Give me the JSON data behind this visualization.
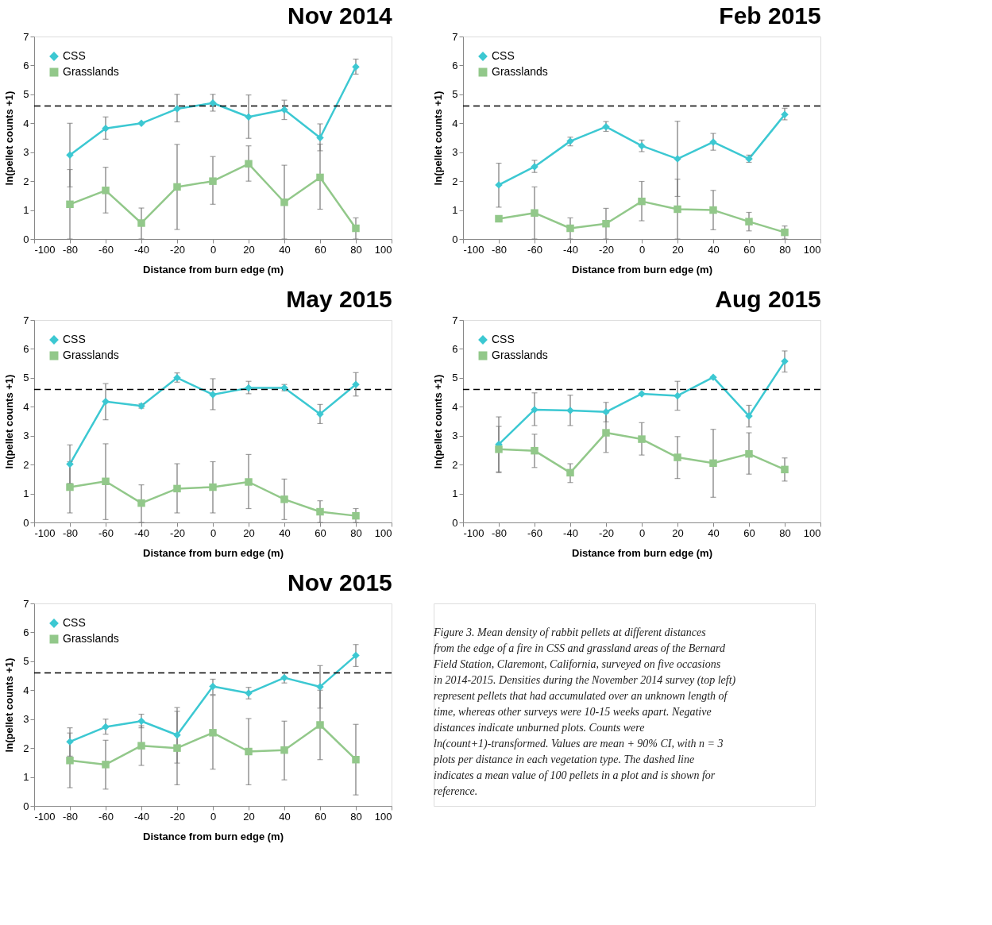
{
  "chart_data": [
    {
      "type": "line",
      "title": "Nov 2014",
      "xlabel": "Distance from burn edge (m)",
      "ylabel": "ln(pellet counts +1)",
      "x": [
        -80,
        -60,
        -40,
        -20,
        0,
        20,
        40,
        60,
        80
      ],
      "xlim": [
        -100,
        100
      ],
      "xticks": [
        -100,
        -80,
        -60,
        -40,
        -20,
        0,
        20,
        40,
        60,
        80,
        100
      ],
      "ylim": [
        0,
        7
      ],
      "yticks": [
        0,
        1,
        2,
        3,
        4,
        5,
        6,
        7
      ],
      "grid": false,
      "legend": "top left",
      "ref_lines": [
        {
          "axis": "y",
          "value": 4.6,
          "line_style": "dashed",
          "color": "#000000"
        }
      ],
      "series": [
        {
          "name": "CSS",
          "color": "#3cc8d2",
          "marker": "diamond",
          "values": [
            2.9,
            3.82,
            4.0,
            4.5,
            4.7,
            4.22,
            4.47,
            3.5,
            5.95
          ],
          "errors": [
            [
              1.8,
              4.0
            ],
            [
              3.45,
              4.22
            ],
            null,
            [
              4.05,
              5.0
            ],
            [
              4.42,
              5.0
            ],
            [
              3.48,
              4.98
            ],
            [
              4.13,
              4.8
            ],
            [
              3.05,
              3.98
            ],
            [
              5.7,
              6.22
            ]
          ]
        },
        {
          "name": "Grasslands",
          "color": "#92c88a",
          "marker": "square",
          "values": [
            1.2,
            1.68,
            0.55,
            1.8,
            2.0,
            2.6,
            1.27,
            2.13,
            0.37
          ],
          "errors": [
            [
              0,
              2.4
            ],
            [
              0.9,
              2.48
            ],
            [
              0,
              1.07
            ],
            [
              0.33,
              3.27
            ],
            [
              1.2,
              2.85
            ],
            [
              2.0,
              3.22
            ],
            [
              0,
              2.55
            ],
            [
              1.03,
              3.28
            ],
            [
              0,
              0.73
            ]
          ]
        }
      ]
    },
    {
      "type": "line",
      "title": "Feb 2015",
      "xlabel": "Distance from burn edge (m)",
      "ylabel": "ln(pellet counts +1)",
      "x": [
        -80,
        -60,
        -40,
        -20,
        0,
        20,
        40,
        60,
        80
      ],
      "xlim": [
        -100,
        100
      ],
      "xticks": [
        -100,
        -80,
        -60,
        -40,
        -20,
        0,
        20,
        40,
        60,
        80,
        100
      ],
      "ylim": [
        0,
        7
      ],
      "yticks": [
        0,
        1,
        2,
        3,
        4,
        5,
        6,
        7
      ],
      "grid": false,
      "legend": "top left",
      "ref_lines": [
        {
          "axis": "y",
          "value": 4.6,
          "line_style": "dashed",
          "color": "#000000"
        }
      ],
      "series": [
        {
          "name": "CSS",
          "color": "#3cc8d2",
          "marker": "diamond",
          "values": [
            1.87,
            2.5,
            3.38,
            3.88,
            3.22,
            2.77,
            3.35,
            2.77,
            4.3
          ],
          "errors": [
            [
              1.1,
              2.62
            ],
            [
              2.3,
              2.72
            ],
            [
              3.22,
              3.52
            ],
            [
              3.72,
              4.06
            ],
            [
              3.02,
              3.42
            ],
            [
              1.47,
              4.07
            ],
            [
              3.07,
              3.65
            ],
            [
              2.65,
              2.9
            ],
            [
              4.12,
              4.52
            ]
          ]
        },
        {
          "name": "Grasslands",
          "color": "#92c88a",
          "marker": "square",
          "values": [
            0.7,
            0.9,
            0.37,
            0.53,
            1.3,
            1.03,
            1.0,
            0.6,
            0.23
          ],
          "errors": [
            null,
            [
              0,
              1.8
            ],
            [
              0,
              0.73
            ],
            [
              0,
              1.06
            ],
            [
              0.63,
              1.99
            ],
            [
              0,
              2.07
            ],
            [
              0.32,
              1.68
            ],
            [
              0.28,
              0.92
            ],
            [
              0,
              0.45
            ]
          ]
        }
      ]
    },
    {
      "type": "line",
      "title": "May 2015",
      "xlabel": "Distance from burn edge (m)",
      "ylabel": "ln(pellet counts +1)",
      "x": [
        -80,
        -60,
        -40,
        -20,
        0,
        20,
        40,
        60,
        80
      ],
      "xlim": [
        -100,
        100
      ],
      "xticks": [
        -100,
        -80,
        -60,
        -40,
        -20,
        0,
        20,
        40,
        60,
        80,
        100
      ],
      "ylim": [
        0,
        7
      ],
      "yticks": [
        0,
        1,
        2,
        3,
        4,
        5,
        6,
        7
      ],
      "grid": false,
      "legend": "top left",
      "ref_lines": [
        {
          "axis": "y",
          "value": 4.6,
          "line_style": "dashed",
          "color": "#000000"
        }
      ],
      "series": [
        {
          "name": "CSS",
          "color": "#3cc8d2",
          "marker": "diamond",
          "values": [
            2.02,
            4.18,
            4.03,
            5.0,
            4.42,
            4.65,
            4.65,
            3.75,
            4.77
          ],
          "errors": [
            [
              1.35,
              2.68
            ],
            [
              3.55,
              4.8
            ],
            [
              3.95,
              4.1
            ],
            [
              4.85,
              5.17
            ],
            [
              3.9,
              4.97
            ],
            [
              4.45,
              4.88
            ],
            [
              4.55,
              4.77
            ],
            [
              3.42,
              4.08
            ],
            [
              4.37,
              5.18
            ]
          ]
        },
        {
          "name": "Grasslands",
          "color": "#92c88a",
          "marker": "square",
          "values": [
            1.22,
            1.42,
            0.67,
            1.17,
            1.22,
            1.4,
            0.8,
            0.37,
            0.23
          ],
          "errors": [
            [
              0.33,
              2.1
            ],
            [
              0.1,
              2.72
            ],
            [
              0,
              1.3
            ],
            [
              0.33,
              2.03
            ],
            [
              0.33,
              2.1
            ],
            [
              0.48,
              2.35
            ],
            [
              0.1,
              1.5
            ],
            [
              0,
              0.75
            ],
            [
              0,
              0.48
            ]
          ]
        }
      ]
    },
    {
      "type": "line",
      "title": "Aug 2015",
      "xlabel": "Distance from burn edge (m)",
      "ylabel": "ln(pellet counts +1)",
      "x": [
        -80,
        -60,
        -40,
        -20,
        0,
        20,
        40,
        60,
        80
      ],
      "xlim": [
        -100,
        100
      ],
      "xticks": [
        -100,
        -80,
        -60,
        -40,
        -20,
        0,
        20,
        40,
        60,
        80,
        100
      ],
      "ylim": [
        0,
        7
      ],
      "yticks": [
        0,
        1,
        2,
        3,
        4,
        5,
        6,
        7
      ],
      "grid": false,
      "legend": "top left",
      "ref_lines": [
        {
          "axis": "y",
          "value": 4.6,
          "line_style": "dashed",
          "color": "#000000"
        }
      ],
      "series": [
        {
          "name": "CSS",
          "color": "#3cc8d2",
          "marker": "diamond",
          "values": [
            2.7,
            3.9,
            3.87,
            3.82,
            4.45,
            4.38,
            5.02,
            3.68,
            5.57
          ],
          "errors": [
            [
              1.75,
              3.65
            ],
            [
              3.35,
              4.48
            ],
            [
              3.35,
              4.4
            ],
            [
              3.48,
              4.15
            ],
            null,
            [
              3.88,
              4.88
            ],
            null,
            [
              3.3,
              4.05
            ],
            [
              5.2,
              5.93
            ]
          ]
        },
        {
          "name": "Grasslands",
          "color": "#92c88a",
          "marker": "square",
          "values": [
            2.53,
            2.48,
            1.72,
            3.1,
            2.88,
            2.25,
            2.05,
            2.37,
            1.83
          ],
          "errors": [
            [
              1.72,
              3.32
            ],
            [
              1.9,
              3.05
            ],
            [
              1.38,
              2.03
            ],
            [
              2.42,
              3.78
            ],
            [
              2.33,
              3.45
            ],
            [
              1.52,
              2.97
            ],
            [
              0.87,
              3.22
            ],
            [
              1.67,
              3.1
            ],
            [
              1.43,
              2.23
            ]
          ]
        }
      ]
    },
    {
      "type": "line",
      "title": "Nov 2015",
      "xlabel": "Distance from burn edge (m)",
      "ylabel": "ln(pellet counts +1)",
      "x": [
        -80,
        -60,
        -40,
        -20,
        0,
        20,
        40,
        60,
        80
      ],
      "xlim": [
        -100,
        100
      ],
      "xticks": [
        -100,
        -80,
        -60,
        -40,
        -20,
        0,
        20,
        40,
        60,
        80,
        100
      ],
      "ylim": [
        0,
        7
      ],
      "yticks": [
        0,
        1,
        2,
        3,
        4,
        5,
        6,
        7
      ],
      "grid": false,
      "legend": "top left",
      "ref_lines": [
        {
          "axis": "y",
          "value": 4.6,
          "line_style": "dashed",
          "color": "#000000"
        }
      ],
      "series": [
        {
          "name": "CSS",
          "color": "#3cc8d2",
          "marker": "diamond",
          "values": [
            2.22,
            2.73,
            2.93,
            2.45,
            4.13,
            3.9,
            4.43,
            4.12,
            5.2
          ],
          "errors": [
            [
              1.72,
              2.7
            ],
            [
              2.48,
              3.0
            ],
            [
              2.7,
              3.17
            ],
            [
              1.48,
              3.4
            ],
            [
              3.85,
              4.38
            ],
            [
              3.7,
              4.1
            ],
            [
              4.25,
              4.62
            ],
            [
              3.38,
              4.85
            ],
            [
              4.82,
              5.58
            ]
          ]
        },
        {
          "name": "Grasslands",
          "color": "#92c88a",
          "marker": "square",
          "values": [
            1.57,
            1.43,
            2.08,
            2.0,
            2.53,
            1.88,
            1.93,
            2.8,
            1.6
          ],
          "errors": [
            [
              0.63,
              2.52
            ],
            [
              0.58,
              2.27
            ],
            [
              1.4,
              2.77
            ],
            [
              0.73,
              3.27
            ],
            [
              1.27,
              3.82
            ],
            [
              0.73,
              3.02
            ],
            [
              0.9,
              2.93
            ],
            [
              1.6,
              4.0
            ],
            [
              0.38,
              2.82
            ]
          ]
        }
      ]
    },
    {
      "type": "other",
      "annotations": [
        "Figure 3. Mean density of rabbit pellets at different distances from the edge of a fire in CSS and grassland areas of the Bernard Field Station, Claremont, California, surveyed on five occasions in 2014-2015. Densities during the November 2014 survey (top left) represent pellets that had accumulated over an unknown length of time, whereas other surveys were 10-15 weeks apart. Negative distances indicate unburned plots. Counts were ln(count+1)-transformed. Values are mean + 90% CI, with n = 3 plots per distance in each vegetation type. The dashed line indicates a mean value of 100 pellets in a plot and is shown for reference."
      ]
    }
  ]
}
